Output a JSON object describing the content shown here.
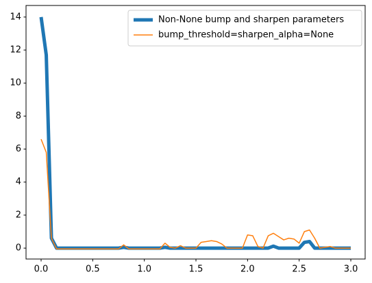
{
  "chart_data": {
    "type": "line",
    "x": [
      0,
      0.05,
      0.1,
      0.15,
      0.2,
      0.25,
      0.3,
      0.35,
      0.4,
      0.45,
      0.5,
      0.55,
      0.6,
      0.65,
      0.7,
      0.75,
      0.8,
      0.85,
      0.9,
      0.95,
      1.0,
      1.05,
      1.1,
      1.15,
      1.2,
      1.25,
      1.3,
      1.35,
      1.4,
      1.45,
      1.5,
      1.55,
      1.6,
      1.65,
      1.7,
      1.75,
      1.8,
      1.85,
      1.9,
      1.95,
      2.0,
      2.05,
      2.1,
      2.15,
      2.2,
      2.25,
      2.3,
      2.35,
      2.4,
      2.45,
      2.5,
      2.55,
      2.6,
      2.65,
      2.7,
      2.75,
      2.8,
      2.85,
      2.9,
      2.95,
      3.0
    ],
    "series": [
      {
        "name": "Non-None bump and sharpen parameters",
        "color": "#1f77b4",
        "values": [
          14,
          11.7,
          0.6,
          0,
          0,
          0,
          0,
          0,
          0,
          0,
          0,
          0,
          0,
          0,
          0,
          0,
          0.05,
          0,
          0,
          0,
          0,
          0,
          0,
          0,
          0.05,
          0,
          0,
          0,
          0,
          0,
          0,
          0,
          0,
          0,
          0,
          0,
          0,
          0,
          0,
          0,
          0,
          0,
          0,
          0,
          0,
          0.12,
          0,
          0,
          0,
          0,
          0,
          0.35,
          0.4,
          0,
          0,
          0,
          0,
          0,
          0,
          0,
          0
        ]
      },
      {
        "name": "bump_threshold=sharpen_alpha=None",
        "color": "#ff7f0e",
        "values": [
          6.6,
          5.8,
          0.6,
          -0.05,
          -0.05,
          -0.05,
          -0.05,
          -0.05,
          -0.05,
          -0.05,
          -0.05,
          -0.05,
          -0.05,
          -0.05,
          -0.05,
          -0.05,
          0.2,
          -0.05,
          -0.05,
          -0.05,
          -0.05,
          -0.05,
          -0.05,
          -0.05,
          0.3,
          0.05,
          0,
          0.15,
          0,
          0,
          0,
          0.35,
          0.4,
          0.45,
          0.4,
          0.25,
          0,
          0,
          0,
          0,
          0.8,
          0.75,
          0.1,
          0,
          0.75,
          0.9,
          0.7,
          0.5,
          0.6,
          0.55,
          0.3,
          1.0,
          1.1,
          0.6,
          0,
          0.05,
          0.1,
          0,
          0,
          0,
          0
        ]
      }
    ],
    "xlim": [
      -0.146,
      3.139
    ],
    "ylim": [
      -0.66,
      14.7
    ],
    "xticks": [
      {
        "value": 0,
        "label": "0.0"
      },
      0.5,
      {
        "value": 1,
        "label": "1.0"
      },
      1.5,
      {
        "value": 2,
        "label": "2.0"
      },
      2.5,
      {
        "value": 3,
        "label": "3.0"
      }
    ],
    "yticks": [
      0,
      2,
      4,
      6,
      8,
      10,
      12,
      14
    ],
    "grid": false,
    "legend": "upper right"
  }
}
